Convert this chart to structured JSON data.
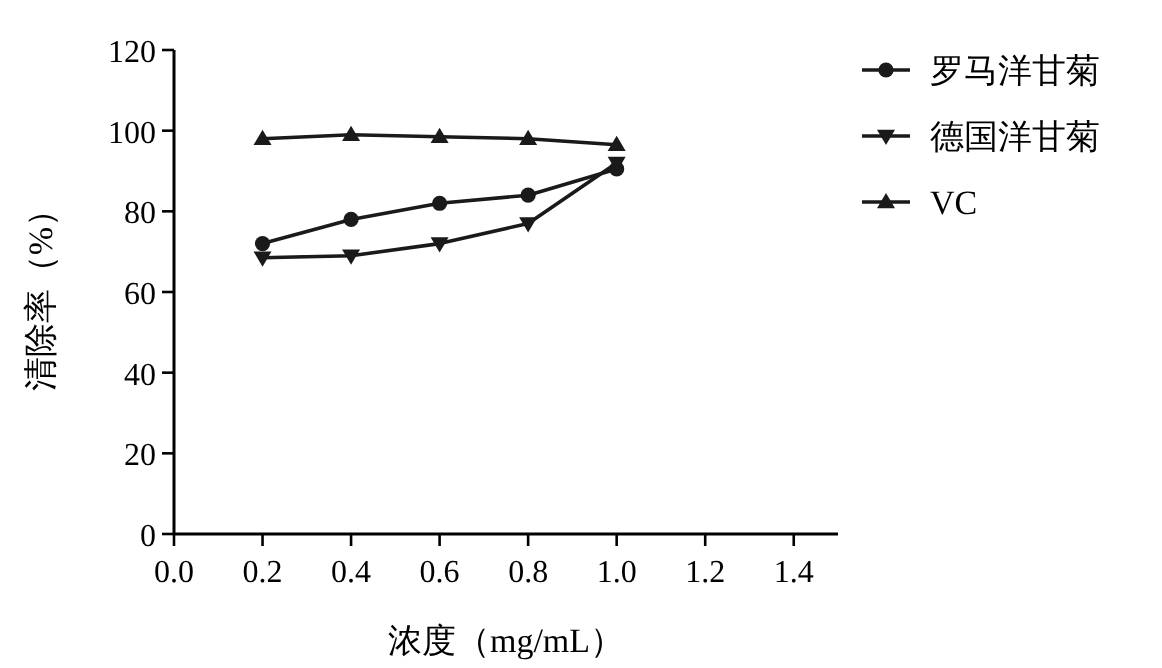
{
  "chart_data": {
    "type": "line",
    "xlabel": "浓度（mg/mL）",
    "ylabel": "清除率（%）",
    "x": [
      0.2,
      0.4,
      0.6,
      0.8,
      1.0
    ],
    "series": [
      {
        "name": "罗马洋甘菊",
        "color": "#1a1a1a",
        "marker": "circle",
        "values": [
          72,
          78,
          82,
          84,
          90.5
        ]
      },
      {
        "name": "德国洋甘菊",
        "color": "#1a1a1a",
        "marker": "triangle-down",
        "values": [
          68.5,
          69,
          72,
          77,
          92
        ]
      },
      {
        "name": "VC",
        "color": "#1a1a1a",
        "marker": "triangle",
        "values": [
          98,
          99,
          98.5,
          98,
          96.5
        ]
      }
    ],
    "xlim": [
      0,
      1.5
    ],
    "xticks": [
      {
        "value": 0,
        "label": "0.0"
      },
      0.2,
      0.4,
      0.6,
      0.8,
      {
        "value": 1,
        "label": "1.0"
      },
      1.2,
      1.4
    ],
    "ylim": [
      0,
      120
    ],
    "yticks": [
      0,
      20,
      40,
      60,
      80,
      100,
      120
    ],
    "grid": false,
    "legend": "top right",
    "line_style": "solid"
  }
}
